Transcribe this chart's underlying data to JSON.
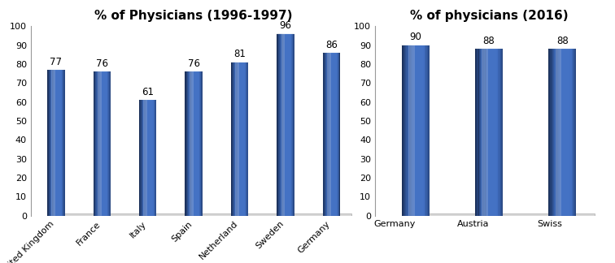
{
  "chart1": {
    "title": "% of Physicians (1996-1997)",
    "categories": [
      "United Kingdom",
      "France",
      "Italy",
      "Spain",
      "Netherland",
      "Sweden",
      "Germany"
    ],
    "values": [
      77,
      76,
      61,
      76,
      81,
      96,
      86
    ],
    "bar_color_main": "#4472C4",
    "bar_color_light": "#6A96E0",
    "bar_color_dark": "#2A52A4",
    "bar_color_top": "#7AAAE8",
    "ylim": [
      0,
      100
    ],
    "yticks": [
      0,
      10,
      20,
      30,
      40,
      50,
      60,
      70,
      80,
      90,
      100
    ]
  },
  "chart2": {
    "title": "% of physicians (2016)",
    "categories": [
      "Germany",
      "Austria",
      "Swiss"
    ],
    "values": [
      90,
      88,
      88
    ],
    "bar_color_main": "#4472C4",
    "bar_color_light": "#6A96E0",
    "bar_color_dark": "#2A52A4",
    "bar_color_top": "#7AAAE8",
    "ylim": [
      0,
      100
    ],
    "yticks": [
      0,
      10,
      20,
      30,
      40,
      50,
      60,
      70,
      80,
      90,
      100
    ]
  },
  "background_color": "#ffffff",
  "title_fontsize": 11,
  "label_fontsize": 8,
  "value_fontsize": 8.5,
  "tick_fontsize": 8,
  "floor_color": "#d8d8d8",
  "floor_edge_color": "#aaaaaa"
}
